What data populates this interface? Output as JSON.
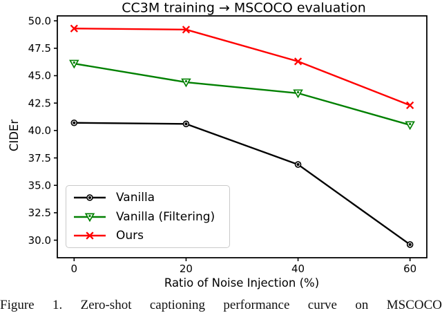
{
  "figure": {
    "caption": "Figure 1. Zero-shot captioning performance curve on MSCOCO"
  },
  "chart_data": {
    "type": "line",
    "title": "CC3M training → MSCOCO evaluation",
    "xlabel": "Ratio of Noise Injection (%)",
    "ylabel": "CIDEr",
    "x": [
      0,
      20,
      40,
      60
    ],
    "series": [
      {
        "name": "Vanilla",
        "color": "#000000",
        "marker": "circle-dot",
        "values": [
          40.7,
          40.6,
          36.9,
          29.6
        ]
      },
      {
        "name": "Vanilla (Filtering)",
        "color": "#008000",
        "marker": "triangle-down",
        "values": [
          46.1,
          44.4,
          43.4,
          40.5
        ]
      },
      {
        "name": "Ours",
        "color": "#ff0000",
        "marker": "x",
        "values": [
          49.3,
          49.2,
          46.3,
          42.3
        ]
      }
    ],
    "xticks": [
      0,
      20,
      40,
      60
    ],
    "yticks": [
      30.0,
      32.5,
      35.0,
      37.5,
      40.0,
      42.5,
      45.0,
      47.5,
      50.0
    ],
    "xlim": [
      -3,
      63
    ],
    "ylim": [
      28.4,
      50.45
    ],
    "grid": false,
    "legend_position": "lower left"
  }
}
